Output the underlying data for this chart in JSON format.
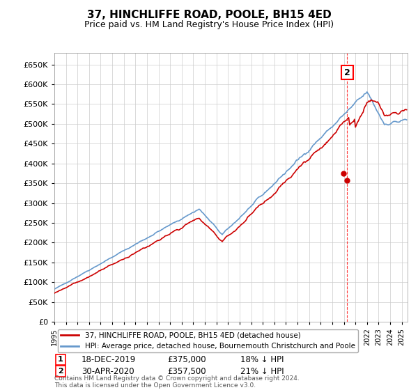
{
  "title": "37, HINCHLIFFE ROAD, POOLE, BH15 4ED",
  "subtitle": "Price paid vs. HM Land Registry's House Price Index (HPI)",
  "ylim": [
    0,
    680000
  ],
  "yticks": [
    0,
    50000,
    100000,
    150000,
    200000,
    250000,
    300000,
    350000,
    400000,
    450000,
    500000,
    550000,
    600000,
    650000
  ],
  "xlim_start": 1995.0,
  "xlim_end": 2025.5,
  "legend_line1": "37, HINCHLIFFE ROAD, POOLE, BH15 4ED (detached house)",
  "legend_line2": "HPI: Average price, detached house, Bournemouth Christchurch and Poole",
  "line1_color": "#cc0000",
  "line2_color": "#6699cc",
  "annotation1_label": "18-DEC-2019",
  "annotation1_price": "£375,000",
  "annotation1_hpi": "18% ↓ HPI",
  "annotation2_label": "30-APR-2020",
  "annotation2_price": "£357,500",
  "annotation2_hpi": "21% ↓ HPI",
  "footnote": "Contains HM Land Registry data © Crown copyright and database right 2024.\nThis data is licensed under the Open Government Licence v3.0.",
  "grid_color": "#cccccc",
  "background_color": "#ffffff"
}
